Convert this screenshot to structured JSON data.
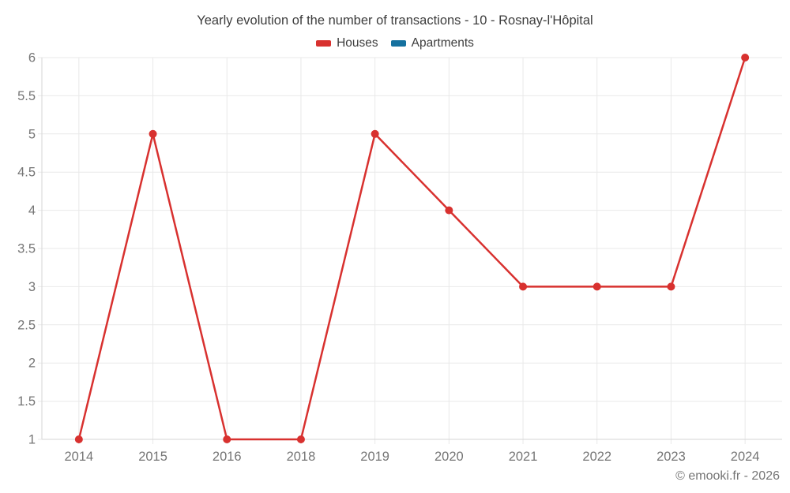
{
  "title": "Yearly evolution of the number of transactions - 10 - Rosnay-l'Hôpital",
  "legend": [
    {
      "label": "Houses",
      "color": "#d8312f"
    },
    {
      "label": "Apartments",
      "color": "#15719f"
    }
  ],
  "watermark": "© emooki.fr - 2026",
  "colors": {
    "houses": "#d8312f",
    "apartments": "#15719f",
    "grid": "#e9e9e9",
    "axis": "#d6d6d6",
    "tick_label": "#757575",
    "title_text": "#3d3d3d"
  },
  "chart_data": {
    "type": "line",
    "title": "Yearly evolution of the number of transactions - 10 - Rosnay-l'Hôpital",
    "categories": [
      "2014",
      "2015",
      "2016",
      "2018",
      "2019",
      "2020",
      "2021",
      "2022",
      "2023",
      "2024"
    ],
    "series": [
      {
        "name": "Houses",
        "color": "#d8312f",
        "values": [
          1,
          5,
          1,
          1,
          5,
          4,
          3,
          3,
          3,
          6
        ]
      },
      {
        "name": "Apartments",
        "color": "#15719f",
        "values": []
      }
    ],
    "xlabel": "",
    "ylabel": "",
    "ylim": [
      1,
      6
    ],
    "y_ticks": [
      1,
      1.5,
      2,
      2.5,
      3,
      3.5,
      4,
      4.5,
      5,
      5.5,
      6
    ],
    "grid": true,
    "legend_position": "top",
    "marker": "circle",
    "notes": "Apartments series has no plotted points; 2017 absent from x axis"
  }
}
